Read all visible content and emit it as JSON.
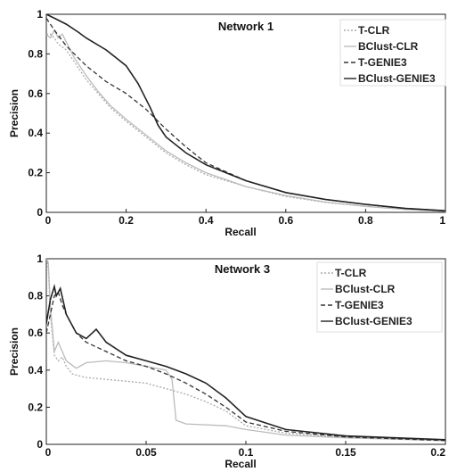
{
  "chart_data": [
    {
      "type": "line",
      "title": "Network 1",
      "xlabel": "Recall",
      "ylabel": "Precision",
      "xlim": [
        0,
        1
      ],
      "ylim": [
        0,
        1
      ],
      "xticks": [
        "0",
        "0.2",
        "0.4",
        "0.6",
        "0.8",
        "1"
      ],
      "yticks": [
        "0",
        "0.2",
        "0.4",
        "0.6",
        "0.8",
        "1"
      ],
      "xtick_values": [
        0,
        0.2,
        0.4,
        0.6,
        0.8,
        1
      ],
      "ytick_values": [
        0,
        0.2,
        0.4,
        0.6,
        0.8,
        1
      ],
      "legend_position": "top-right",
      "series": [
        {
          "name": "T-CLR",
          "color": "#aaaaaa",
          "dash": "dotted",
          "x": [
            0,
            0.01,
            0.02,
            0.03,
            0.05,
            0.07,
            0.1,
            0.13,
            0.16,
            0.2,
            0.25,
            0.3,
            0.35,
            0.4,
            0.5,
            0.6,
            0.7,
            0.8,
            0.9,
            1.0
          ],
          "y": [
            0.9,
            0.9,
            0.88,
            0.85,
            0.82,
            0.76,
            0.67,
            0.6,
            0.53,
            0.46,
            0.38,
            0.3,
            0.24,
            0.19,
            0.13,
            0.08,
            0.05,
            0.03,
            0.015,
            0.005
          ]
        },
        {
          "name": "BClust-CLR",
          "color": "#bbbbbb",
          "dash": "solid",
          "x": [
            0,
            0.01,
            0.02,
            0.03,
            0.04,
            0.05,
            0.07,
            0.1,
            0.13,
            0.16,
            0.2,
            0.25,
            0.3,
            0.35,
            0.4,
            0.5,
            0.6,
            0.7,
            0.8,
            0.9,
            1.0
          ],
          "y": [
            0.9,
            0.88,
            0.92,
            0.88,
            0.9,
            0.86,
            0.78,
            0.69,
            0.61,
            0.54,
            0.47,
            0.39,
            0.31,
            0.25,
            0.2,
            0.13,
            0.085,
            0.052,
            0.03,
            0.015,
            0.005
          ]
        },
        {
          "name": "T-GENIE3",
          "color": "#333333",
          "dash": "dashed",
          "x": [
            0,
            0.02,
            0.05,
            0.08,
            0.1,
            0.15,
            0.2,
            0.25,
            0.3,
            0.35,
            0.4,
            0.5,
            0.6,
            0.7,
            0.8,
            0.9,
            1.0
          ],
          "y": [
            0.98,
            0.92,
            0.84,
            0.78,
            0.74,
            0.66,
            0.6,
            0.52,
            0.42,
            0.33,
            0.25,
            0.16,
            0.1,
            0.065,
            0.04,
            0.02,
            0.008
          ]
        },
        {
          "name": "BClust-GENIE3",
          "color": "#222222",
          "dash": "solid",
          "x": [
            0,
            0.02,
            0.05,
            0.08,
            0.1,
            0.15,
            0.2,
            0.23,
            0.26,
            0.28,
            0.3,
            0.35,
            0.4,
            0.5,
            0.6,
            0.7,
            0.8,
            0.9,
            1.0
          ],
          "y": [
            1.0,
            0.98,
            0.95,
            0.91,
            0.88,
            0.82,
            0.74,
            0.65,
            0.53,
            0.44,
            0.38,
            0.3,
            0.24,
            0.16,
            0.1,
            0.065,
            0.04,
            0.02,
            0.008
          ]
        }
      ]
    },
    {
      "type": "line",
      "title": "Network 3",
      "xlabel": "Recall",
      "ylabel": "Precision",
      "xlim": [
        0,
        0.2
      ],
      "ylim": [
        0,
        1
      ],
      "xticks": [
        "0",
        "0.05",
        "0.1",
        "0.15",
        "0.2"
      ],
      "yticks": [
        "0",
        "0.2",
        "0.4",
        "0.6",
        "0.8",
        "1"
      ],
      "xtick_values": [
        0,
        0.05,
        0.1,
        0.15,
        0.2
      ],
      "ytick_values": [
        0,
        0.2,
        0.4,
        0.6,
        0.8,
        1
      ],
      "legend_position": "top-right",
      "series": [
        {
          "name": "T-CLR",
          "color": "#aaaaaa",
          "dash": "dotted",
          "x": [
            0,
            0.001,
            0.002,
            0.004,
            0.006,
            0.008,
            0.01,
            0.013,
            0.016,
            0.02,
            0.03,
            0.04,
            0.05,
            0.06,
            0.07,
            0.08,
            0.09,
            0.1,
            0.12,
            0.15,
            0.2
          ],
          "y": [
            1.0,
            0.95,
            0.7,
            0.48,
            0.45,
            0.47,
            0.42,
            0.38,
            0.37,
            0.36,
            0.35,
            0.34,
            0.33,
            0.3,
            0.27,
            0.23,
            0.18,
            0.1,
            0.06,
            0.04,
            0.02
          ]
        },
        {
          "name": "BClust-CLR",
          "color": "#bbbbbb",
          "dash": "solid",
          "x": [
            0,
            0.001,
            0.002,
            0.004,
            0.006,
            0.008,
            0.01,
            0.015,
            0.02,
            0.03,
            0.04,
            0.05,
            0.06,
            0.063,
            0.065,
            0.07,
            0.09,
            0.1,
            0.12,
            0.15,
            0.2
          ],
          "y": [
            1.0,
            0.98,
            0.75,
            0.5,
            0.55,
            0.5,
            0.45,
            0.41,
            0.44,
            0.45,
            0.44,
            0.42,
            0.4,
            0.35,
            0.13,
            0.11,
            0.1,
            0.08,
            0.05,
            0.035,
            0.02
          ]
        },
        {
          "name": "T-GENIE3",
          "color": "#333333",
          "dash": "dashed",
          "x": [
            0,
            0.002,
            0.004,
            0.006,
            0.008,
            0.01,
            0.015,
            0.02,
            0.03,
            0.04,
            0.05,
            0.06,
            0.07,
            0.08,
            0.09,
            0.1,
            0.12,
            0.15,
            0.2
          ],
          "y": [
            0.6,
            0.7,
            0.8,
            0.82,
            0.75,
            0.7,
            0.6,
            0.55,
            0.5,
            0.45,
            0.42,
            0.38,
            0.33,
            0.27,
            0.2,
            0.12,
            0.07,
            0.04,
            0.02
          ]
        },
        {
          "name": "BClust-GENIE3",
          "color": "#222222",
          "dash": "solid",
          "x": [
            0,
            0.002,
            0.004,
            0.005,
            0.007,
            0.01,
            0.015,
            0.02,
            0.025,
            0.03,
            0.04,
            0.05,
            0.06,
            0.07,
            0.08,
            0.09,
            0.1,
            0.12,
            0.15,
            0.2
          ],
          "y": [
            0.65,
            0.78,
            0.85,
            0.8,
            0.84,
            0.7,
            0.6,
            0.57,
            0.62,
            0.55,
            0.48,
            0.45,
            0.42,
            0.38,
            0.33,
            0.25,
            0.15,
            0.08,
            0.045,
            0.025
          ]
        }
      ]
    }
  ]
}
